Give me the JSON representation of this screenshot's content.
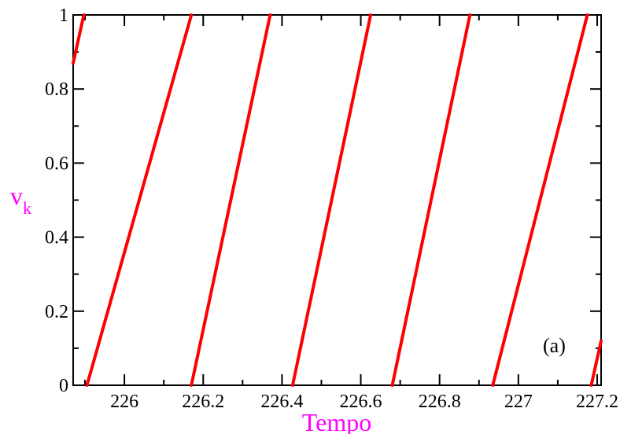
{
  "chart_data": {
    "type": "line",
    "title": "",
    "xlabel": "Tempo",
    "ylabel_main": "v",
    "ylabel_sub": "k",
    "annotation": "(a)",
    "xlim": [
      225.87,
      227.21
    ],
    "ylim": [
      0,
      1
    ],
    "x_ticks": [
      {
        "value": 226,
        "label": "226"
      },
      {
        "value": 226.2,
        "label": "226.2"
      },
      {
        "value": 226.4,
        "label": "226.4"
      },
      {
        "value": 226.6,
        "label": "226.6"
      },
      {
        "value": 226.8,
        "label": "226.8"
      },
      {
        "value": 227,
        "label": "227"
      },
      {
        "value": 227.2,
        "label": "227.2"
      }
    ],
    "y_ticks": [
      {
        "value": 0,
        "label": "0"
      },
      {
        "value": 0.2,
        "label": "0.2"
      },
      {
        "value": 0.4,
        "label": "0.4"
      },
      {
        "value": 0.6,
        "label": "0.6"
      },
      {
        "value": 0.8,
        "label": "0.8"
      },
      {
        "value": 1,
        "label": "1"
      }
    ],
    "grid": false,
    "line_color": "#ff0000",
    "series": [
      {
        "segments": [
          {
            "x": [
              225.87,
              225.897
            ],
            "y": [
              0.87,
              1.0
            ]
          },
          {
            "x": [
              225.905,
              226.17
            ],
            "y": [
              0.0,
              1.0
            ]
          },
          {
            "x": [
              226.17,
              226.37
            ],
            "y": [
              0.0,
              1.0
            ]
          },
          {
            "x": [
              226.427,
              226.625
            ],
            "y": [
              0.0,
              1.0
            ]
          },
          {
            "x": [
              226.68,
              226.877
            ],
            "y": [
              0.0,
              1.0
            ]
          },
          {
            "x": [
              226.935,
              227.175
            ],
            "y": [
              0.0,
              1.0
            ]
          },
          {
            "x": [
              227.185,
              227.21
            ],
            "y": [
              0.0,
              0.12
            ]
          }
        ]
      }
    ]
  },
  "colors": {
    "axis": "#000000",
    "label": "#ff00ff",
    "line": "#ff0000"
  }
}
